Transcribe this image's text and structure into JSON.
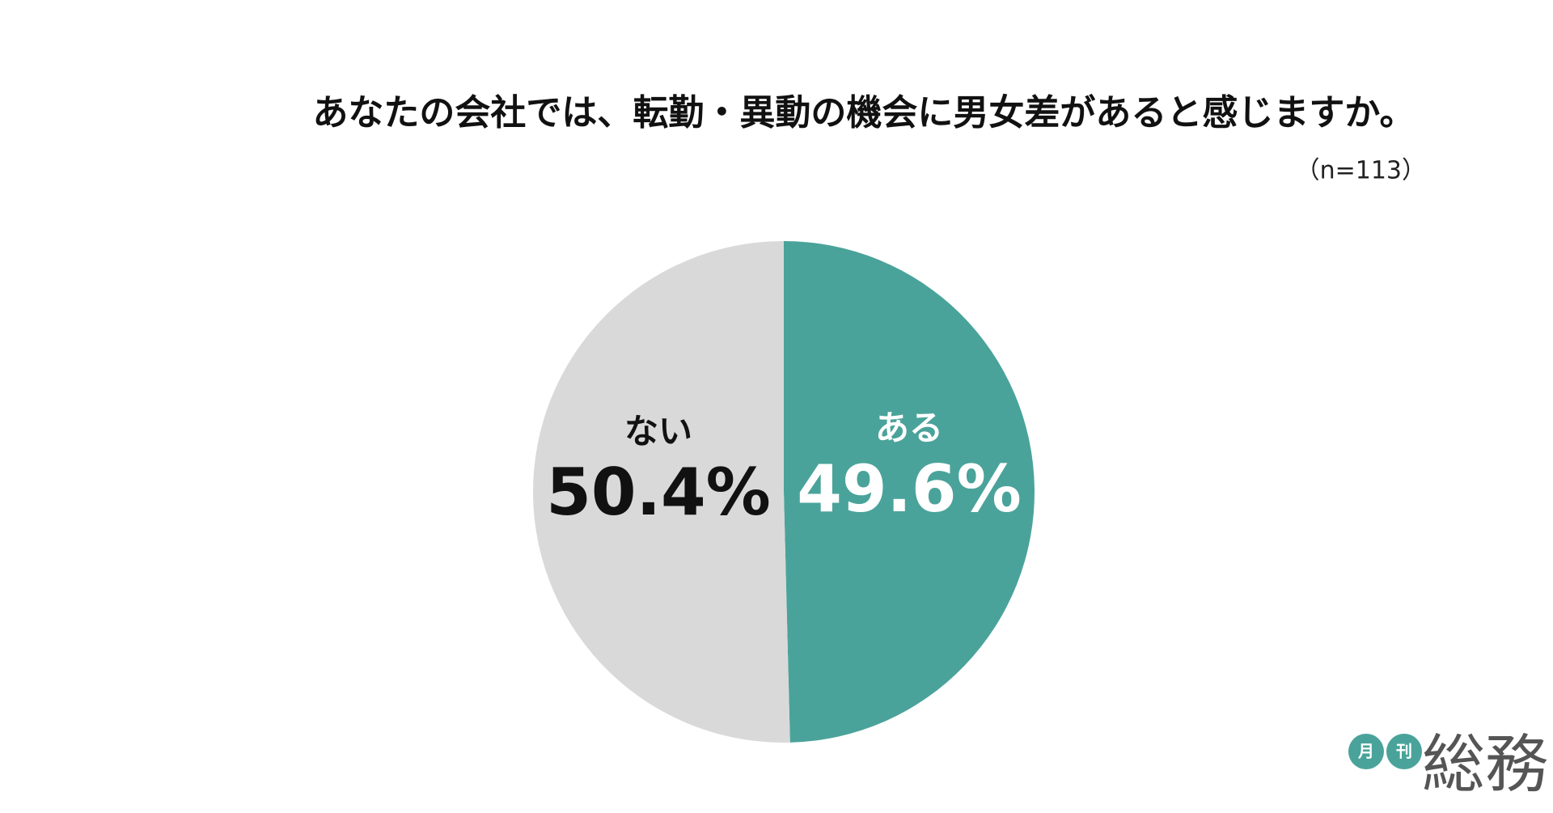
{
  "chart_data": {
    "type": "pie",
    "title": "あなたの会社では、転勤・異動の機会に男女差があると感じますか。",
    "subtitle": "（n=113）",
    "categories": [
      "ある",
      "ない"
    ],
    "values": [
      49.6,
      50.4
    ],
    "value_labels": [
      "49.6%",
      "50.4%"
    ],
    "colors": [
      "#4aa39a",
      "#d9d9d9"
    ]
  },
  "logo": {
    "marks": [
      "月",
      "刊"
    ],
    "name": "総務"
  }
}
